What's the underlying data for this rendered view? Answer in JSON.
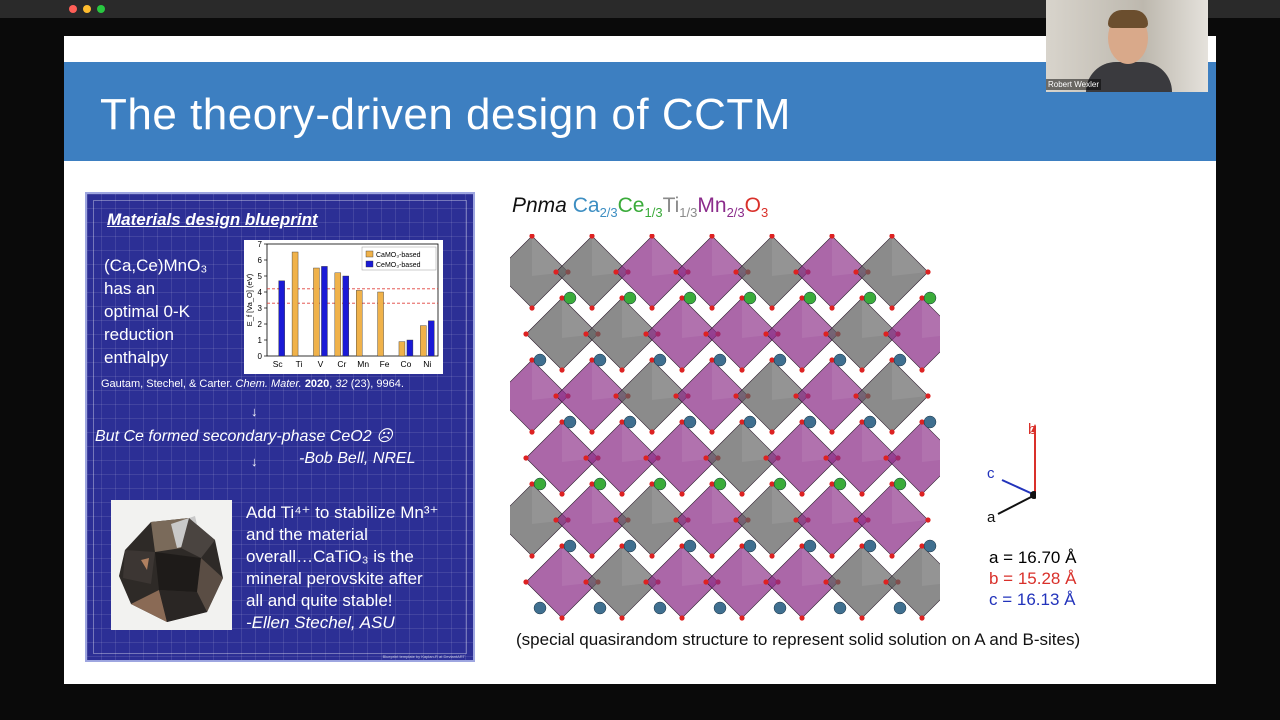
{
  "window": {
    "traffic_lights": [
      "#ff5f57",
      "#febc2e",
      "#28c840"
    ]
  },
  "webcam": {
    "participant_name": "Robert Wexler"
  },
  "slide": {
    "title": "The theory-driven design of CCTM",
    "blueprint": {
      "heading": "Materials design blueprint",
      "intro_lines": [
        "(Ca,Ce)MnO₃",
        "has an",
        "optimal 0-K",
        "reduction",
        "enthalpy"
      ],
      "citation_authors": "Gautam, Stechel, & Carter.",
      "citation_journal": "Chem. Mater.",
      "citation_year": "2020",
      "citation_volume": "32",
      "citation_issue_pages": "(23), 9964.",
      "arrow": "↓",
      "quote1": "But Ce formed secondary-phase CeO2 ☹",
      "quote1_attrib": "-Bob Bell, NREL",
      "quote2_lines": [
        "Add Ti⁴⁺ to stabilize Mn³⁺",
        "and the material",
        "overall…CaTiO₃ is the",
        "mineral perovskite after",
        "all and quite stable!"
      ],
      "quote2_attrib": "-Ellen Stechel, ASU",
      "footer_note": "Blueprint template by Kaplan-R at DeviantART"
    },
    "formula": {
      "space_group": "Pnma",
      "parts": [
        {
          "el": "Ca",
          "sub": "2/3",
          "color": "#3d8ec2"
        },
        {
          "el": "Ce",
          "sub": "1/3",
          "color": "#3aab3a"
        },
        {
          "el": "Ti",
          "sub": "1/3",
          "color": "#8a8a8a"
        },
        {
          "el": "Mn",
          "sub": "2/3",
          "color": "#8b2b8b"
        },
        {
          "el": "O",
          "sub": "3",
          "color": "#d9302a"
        }
      ]
    },
    "axes": {
      "a_label": "a",
      "b_label": "b",
      "c_label": "c"
    },
    "lattice": [
      {
        "text": "a = 16.70 Å",
        "color": "#111111"
      },
      {
        "text": "b = 15.28 Å",
        "color": "#d9302a"
      },
      {
        "text": "c = 16.13 Å",
        "color": "#2233bb"
      }
    ],
    "caption": "(special quasirandom structure to represent solid solution on A and B-sites)"
  },
  "chart_data": {
    "type": "bar",
    "categories": [
      "Sc",
      "Ti",
      "V",
      "Cr",
      "Mn",
      "Fe",
      "Co",
      "Ni"
    ],
    "ylabel": "E_f [Va_O] (eV)",
    "ylim": [
      0,
      7
    ],
    "yticks": [
      0,
      1,
      2,
      3,
      4,
      5,
      6,
      7
    ],
    "series": [
      {
        "name": "CaMO₃-based",
        "color": "#f0b24a",
        "values": [
          null,
          6.5,
          5.5,
          5.2,
          4.1,
          4.0,
          0.9,
          1.9
        ]
      },
      {
        "name": "CeMO₃-based",
        "color": "#1a1ad6",
        "values": [
          4.7,
          null,
          5.6,
          5.0,
          null,
          null,
          1.0,
          2.2
        ]
      }
    ],
    "reference_lines": [
      4.2,
      3.3
    ],
    "grid": false,
    "legend": "top-right"
  }
}
